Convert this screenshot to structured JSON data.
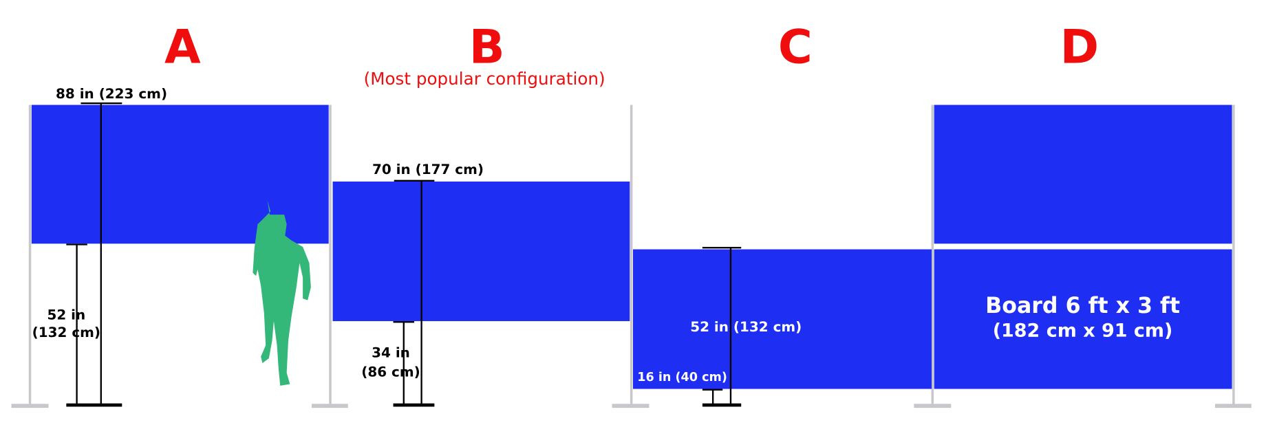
{
  "configurations": [
    {
      "letter": "A",
      "top_height": "88 in (223 cm)",
      "bottom_height": [
        "52 in",
        "(132 cm)"
      ]
    },
    {
      "letter": "B",
      "subtitle": "(Most popular configuration)",
      "top_height": "70 in (177 cm)",
      "bottom_height": [
        "34 in",
        "(86 cm)"
      ]
    },
    {
      "letter": "C",
      "top_height": "52 in (132 cm)",
      "bottom_height": "16 in (40 cm)"
    },
    {
      "letter": "D",
      "board_size": [
        "Board 6 ft x 3 ft",
        "(182 cm x 91 cm)"
      ]
    }
  ]
}
